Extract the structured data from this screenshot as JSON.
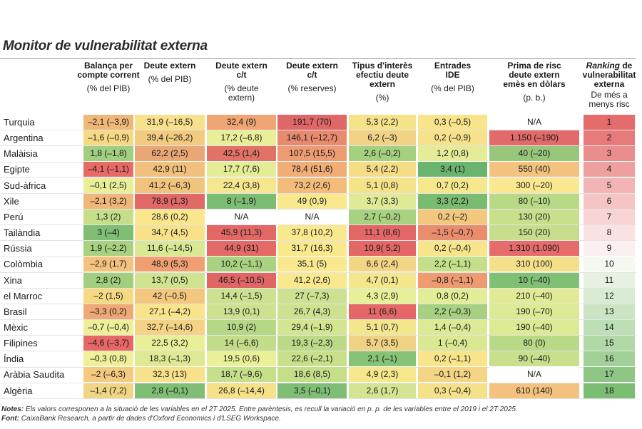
{
  "title": "Monitor de vulnerabilitat externa",
  "columns": [
    {
      "title": "Balança per compte corrent",
      "unit": "(% del PIB)"
    },
    {
      "title": "Deute extern",
      "unit": "(% del PIB)"
    },
    {
      "title": "Deute extern c/t",
      "unit": "(% deute extern)"
    },
    {
      "title": "Deute extern c/t",
      "unit": "(% reserves)"
    },
    {
      "title": "Tipus d'interès efectiu deute extern",
      "unit": "(%)"
    },
    {
      "title": "Entrades IDE",
      "unit": "(% del PIB)"
    },
    {
      "title": "Prima de risc deute extern emès en dòlars",
      "unit": "(p. b.)"
    },
    {
      "title_italic": "Ranking",
      "title_rest": " de vulnerabilitat externa",
      "unit": "De més a menys risc"
    }
  ],
  "rows": [
    {
      "country": "Turquia",
      "values": [
        "–2,1 (–3,9)",
        "31,9 (–16,5)",
        "32,4 (9)",
        "191,7 (70)",
        "5,3 (2,2)",
        "0,3 (–0,5)",
        "N/A",
        "1"
      ]
    },
    {
      "country": "Argentina",
      "values": [
        "–1,6 (–0,9)",
        "39,4 (–26,2)",
        "17,2 (–6,8)",
        "146,1 (–12,7)",
        "6,2 (–3)",
        "0,2 (–0,9)",
        "1.150 (–190)",
        "2"
      ]
    },
    {
      "country": "Malàisia",
      "values": [
        "1,8 (–1,8)",
        "62,2 (2,5)",
        "42,5 (1,4)",
        "107,5 (15,5)",
        "2,6 (–0,2)",
        "1,2 (0,8)",
        "40 (–20)",
        "3"
      ]
    },
    {
      "country": "Egipte",
      "values": [
        "–4,1 (–1,1)",
        "42,9 (11)",
        "17,7 (7,6)",
        "78,4 (51,6)",
        "5,4 (2,2)",
        "3,4 (1)",
        "550 (40)",
        "4"
      ]
    },
    {
      "country": "Sud-àfrica",
      "values": [
        "–0,1 (2,5)",
        "41,2 (–6,3)",
        "22,4 (3,8)",
        "73,2 (2,6)",
        "5,1 (0,8)",
        "0,7 (0,2)",
        "300 (–20)",
        "5"
      ]
    },
    {
      "country": "Xile",
      "values": [
        "–2,1 (3,2)",
        "78,9 (1,3)",
        "8 (–1,9)",
        "49 (0,9)",
        "3,7 (3,3)",
        "3,3 (2,2)",
        "80 (–10)",
        "6"
      ]
    },
    {
      "country": "Perú",
      "values": [
        "1,3 (2)",
        "28,6 (0,2)",
        "N/A",
        "N/A",
        "2,7 (–0,2)",
        "0,2 (–2)",
        "130 (20)",
        "7"
      ]
    },
    {
      "country": "Tailàndia",
      "values": [
        "3 (–4)",
        "34,7 (4,5)",
        "45,9 (11,3)",
        "37,8 (10,2)",
        "11,1 (8,6)",
        "–1,5 (–0,7)",
        "150 (20)",
        "8"
      ]
    },
    {
      "country": "Rússia",
      "values": [
        "1,9 (–2,2)",
        "11,6 (–14,5)",
        "44,9 (31)",
        "31,7 (16,3)",
        "10,9( 5,2)",
        "0,2 (–0,4)",
        "1.310 (1.090)",
        "9"
      ]
    },
    {
      "country": "Colòmbia",
      "values": [
        "–2,9 (1,7)",
        "48,9 (5,3)",
        "10,2 (–1,1)",
        "35,1 (5)",
        "6,6 (2,4)",
        "2,2 (–1,1)",
        "310 (100)",
        "10"
      ]
    },
    {
      "country": "Xina",
      "values": [
        "2,8 (2)",
        "13,7 (0,5)",
        "46,5 (–10,5)",
        "41,2 (2,6)",
        "4,7 (0,1)",
        "–0,8 (–1,1)",
        "10 (–40)",
        "11"
      ]
    },
    {
      "country": "el Marroc",
      "values": [
        "–2 (1,5)",
        "42 (–0,5)",
        "14,4 (–1,5)",
        "27 (–7,3)",
        "4,3 (2,9)",
        "0,8 (0,2)",
        "210 (–40)",
        "12"
      ]
    },
    {
      "country": "Brasil",
      "values": [
        "–3,3 (0,2)",
        "27,1 (–4,2)",
        "13,9 (0,1)",
        "26,7 (4,3)",
        "11 (6,6)",
        "2,2 (–0,3)",
        "190 (–70)",
        "13"
      ]
    },
    {
      "country": "Mèxic",
      "values": [
        "–0,7 (–0,4)",
        "32,7 (–14,6)",
        "10,9 (2)",
        "29,4 (–1,9)",
        "5,1 (0,7)",
        "1,4 (–0,4)",
        "190 (–40)",
        "14"
      ]
    },
    {
      "country": "Filipines",
      "values": [
        "–4,6 (–3,7)",
        "22,5 (3,2)",
        "14 (–6,6)",
        "19,3 (–2,3)",
        "5,7 (3,5)",
        "1 (–0,4)",
        "80 (0)",
        "15"
      ]
    },
    {
      "country": "Índia",
      "values": [
        "–0,3 (0,8)",
        "18,3 (–1,3)",
        "19,5 (0,6)",
        "22,6 (–2,1)",
        "2,1 (–1)",
        "0,2 (–1,1)",
        "90 (–40)",
        "16"
      ]
    },
    {
      "country": "Aràbia Saudita",
      "values": [
        "–2 (–6,3)",
        "32,3 (13)",
        "18,7 (–9,6)",
        "18,6 (8,5)",
        "4,9 (2,3)",
        "–0,1 (1,2)",
        "N/A",
        "17"
      ]
    },
    {
      "country": "Algèria",
      "values": [
        "–1,4 (7,2)",
        "2,8 (–0,1)",
        "26,8 (–14,4)",
        "3,5 (–0,1)",
        "2,6 (1,7)",
        "0,3 (–0,4)",
        "610 (140)",
        "18"
      ]
    }
  ],
  "colors": [
    [
      "#f0b77a",
      "#f7e18c",
      "#efa674",
      "#e06767",
      "#f5e38a",
      "#f7e48b",
      "#ffffff",
      "#e56c6c"
    ],
    [
      "#f6d983",
      "#f3cb80",
      "#e8ef98",
      "#e88a70",
      "#f1d386",
      "#f7e28b",
      "#e36a6a",
      "#e77b7b"
    ],
    [
      "#a2cf7f",
      "#e9a775",
      "#e27266",
      "#ec9b72",
      "#a5d07f",
      "#e4ec97",
      "#98c77c",
      "#ea8d8d"
    ],
    [
      "#e76a66",
      "#f1c07c",
      "#e4ec97",
      "#f0ad76",
      "#f5dd87",
      "#6bb46d",
      "#f3c27e",
      "#ee9f9f"
    ],
    [
      "#e8ef98",
      "#f1c47d",
      "#f5e78d",
      "#f4bc7b",
      "#f5e38a",
      "#f4e78c",
      "#f9e890",
      "#f2b4b4"
    ],
    [
      "#f0b77a",
      "#e06866",
      "#7cbd73",
      "#f8e88e",
      "#e0ea96",
      "#78bb71",
      "#b8da87",
      "#f5c4c4"
    ],
    [
      "#c4de89",
      "#f9e68d",
      "#ffffff",
      "#ffffff",
      "#a8d180",
      "#f2c77e",
      "#c8df8c",
      "#f8d4d4"
    ],
    [
      "#7fbe74",
      "#f7e28a",
      "#e26866",
      "#f9e88e",
      "#e26766",
      "#ea8d6f",
      "#c6de8b",
      "#fae2e2"
    ],
    [
      "#a8d180",
      "#d9e993",
      "#e36a66",
      "#f9e88e",
      "#e26766",
      "#f7e48b",
      "#e66c6b",
      "#fbf0f0"
    ],
    [
      "#f3c27e",
      "#ef9f72",
      "#a8d180",
      "#f9e88e",
      "#f4d586",
      "#c4de89",
      "#f4e08b",
      "#f4f8f0"
    ],
    [
      "#a2cf7f",
      "#cfe390",
      "#e06666",
      "#f9e88e",
      "#f3e68c",
      "#ee9b72",
      "#80c074",
      "#e6f1e1"
    ],
    [
      "#f6d983",
      "#f3c77e",
      "#cde290",
      "#cce290",
      "#e8ef98",
      "#e4ec97",
      "#e3ea95",
      "#d9ecd3"
    ],
    [
      "#f0a874",
      "#f9e48c",
      "#cde290",
      "#cce290",
      "#e36866",
      "#a7d180",
      "#dcea94",
      "#cbe5c3"
    ],
    [
      "#eeef99",
      "#f4d385",
      "#b5d886",
      "#d4e592",
      "#f3e68c",
      "#dce995",
      "#dcea94",
      "#bedfb5"
    ],
    [
      "#e66766",
      "#e9ef98",
      "#c2dc89",
      "#bcd987",
      "#f0d285",
      "#dae893",
      "#b8da87",
      "#b1d8a7"
    ],
    [
      "#eff09a",
      "#dde994",
      "#eaf098",
      "#c8e08c",
      "#86c376",
      "#f7e48b",
      "#c8df8c",
      "#a2d098"
    ],
    [
      "#f4c980",
      "#f7e28b",
      "#c6df8b",
      "#c4de89",
      "#f4e78c",
      "#f4d586",
      "#ffffff",
      "#8fc686"
    ],
    [
      "#f1d586",
      "#7fbe74",
      "#f6e18a",
      "#7fbe74",
      "#d2e592",
      "#f4e28b",
      "#f3c27e",
      "#7bbd73"
    ]
  ],
  "notes": {
    "label": "Notes:",
    "text": " Els valors corresponen a la situació de les variables en el 2T 2025. Entre parèntesis, es recull la variació en p. p. de les variables entre el 2019 i el 2T 2025."
  },
  "source": {
    "label": "Font:",
    "text": " CaixaBank Research, a partir de dades d'Oxford Economics i d'LSEG Workspace."
  }
}
